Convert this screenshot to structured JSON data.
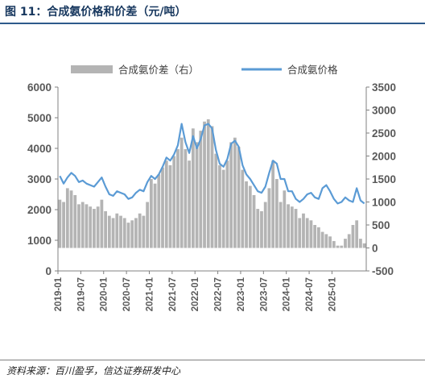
{
  "figure": {
    "title": "图 11：合成氨价格和价差（元/吨）",
    "source": "资料来源：百川盈孚，信达证券研发中心"
  },
  "chart_data": {
    "type": "bar+line",
    "legend": [
      {
        "name": "合成氨价差（右）",
        "kind": "bar",
        "color": "#b4b4b4"
      },
      {
        "name": "合成氨价格",
        "kind": "line",
        "color": "#5b9bd5"
      }
    ],
    "left_axis": {
      "min": 0,
      "max": 6000,
      "step": 1000,
      "ticks": [
        "0",
        "1000",
        "2000",
        "3000",
        "4000",
        "5000",
        "6000"
      ]
    },
    "right_axis": {
      "min": -500,
      "max": 3500,
      "step": 500,
      "ticks": [
        "-500",
        "0",
        "500",
        "1000",
        "1500",
        "2000",
        "2500",
        "3000",
        "3500"
      ]
    },
    "x_ticks": [
      "2019-01",
      "2019-07",
      "2020-01",
      "2020-07",
      "2021-01",
      "2021-07",
      "2022-01",
      "2022-07",
      "2023-01",
      "2023-07",
      "2024-01",
      "2024-07",
      "2025-01"
    ],
    "x_range": [
      "2019-01",
      "2025-09"
    ],
    "price_series": {
      "name": "合成氨价格",
      "x": [
        "2019-01",
        "2019-02",
        "2019-03",
        "2019-04",
        "2019-05",
        "2019-06",
        "2019-07",
        "2019-08",
        "2019-09",
        "2019-10",
        "2019-11",
        "2019-12",
        "2020-01",
        "2020-02",
        "2020-03",
        "2020-04",
        "2020-05",
        "2020-06",
        "2020-07",
        "2020-08",
        "2020-09",
        "2020-10",
        "2020-11",
        "2020-12",
        "2021-01",
        "2021-02",
        "2021-03",
        "2021-04",
        "2021-05",
        "2021-06",
        "2021-07",
        "2021-08",
        "2021-09",
        "2021-10",
        "2021-11",
        "2021-12",
        "2022-01",
        "2022-02",
        "2022-03",
        "2022-04",
        "2022-05",
        "2022-06",
        "2022-07",
        "2022-08",
        "2022-09",
        "2022-10",
        "2022-11",
        "2022-12",
        "2023-01",
        "2023-02",
        "2023-03",
        "2023-04",
        "2023-05",
        "2023-06",
        "2023-07",
        "2023-08",
        "2023-09",
        "2023-10",
        "2023-11",
        "2023-12",
        "2024-01",
        "2024-02",
        "2024-03",
        "2024-04",
        "2024-05",
        "2024-06",
        "2024-07",
        "2024-08",
        "2024-09",
        "2024-10",
        "2024-11",
        "2024-12",
        "2025-01",
        "2025-02",
        "2025-03",
        "2025-04",
        "2025-05",
        "2025-06",
        "2025-07",
        "2025-08",
        "2025-09"
      ],
      "y": [
        3100,
        2850,
        3050,
        3200,
        3100,
        2900,
        2950,
        2850,
        2800,
        2750,
        2900,
        3050,
        2750,
        2500,
        2450,
        2600,
        2550,
        2500,
        2350,
        2400,
        2550,
        2650,
        2600,
        2900,
        3100,
        3000,
        3150,
        3400,
        3700,
        3600,
        3800,
        4100,
        4800,
        4200,
        3850,
        4400,
        4000,
        4300,
        4750,
        4800,
        4650,
        3950,
        3500,
        3400,
        3650,
        4150,
        4250,
        4050,
        3450,
        3150,
        3000,
        2800,
        2600,
        2550,
        2750,
        3200,
        3600,
        3500,
        3000,
        3000,
        2600,
        2600,
        2350,
        2250,
        2350,
        2500,
        2550,
        2400,
        2350,
        2700,
        2800,
        2600,
        2350,
        2200,
        2250,
        2400,
        2300,
        2250,
        2700,
        2300,
        2200
      ]
    },
    "spread_series": {
      "name": "合成氨价差（右）",
      "x": [
        "2019-01",
        "2019-02",
        "2019-03",
        "2019-04",
        "2019-05",
        "2019-06",
        "2019-07",
        "2019-08",
        "2019-09",
        "2019-10",
        "2019-11",
        "2019-12",
        "2020-01",
        "2020-02",
        "2020-03",
        "2020-04",
        "2020-05",
        "2020-06",
        "2020-07",
        "2020-08",
        "2020-09",
        "2020-10",
        "2020-11",
        "2020-12",
        "2021-01",
        "2021-02",
        "2021-03",
        "2021-04",
        "2021-05",
        "2021-06",
        "2021-07",
        "2021-08",
        "2021-09",
        "2021-10",
        "2021-11",
        "2021-12",
        "2022-01",
        "2022-02",
        "2022-03",
        "2022-04",
        "2022-05",
        "2022-06",
        "2022-07",
        "2022-08",
        "2022-09",
        "2022-10",
        "2022-11",
        "2022-12",
        "2023-01",
        "2023-02",
        "2023-03",
        "2023-04",
        "2023-05",
        "2023-06",
        "2023-07",
        "2023-08",
        "2023-09",
        "2023-10",
        "2023-11",
        "2023-12",
        "2024-01",
        "2024-02",
        "2024-03",
        "2024-04",
        "2024-05",
        "2024-06",
        "2024-07",
        "2024-08",
        "2024-09",
        "2024-10",
        "2024-11",
        "2024-12",
        "2025-01",
        "2025-02",
        "2025-03",
        "2025-04",
        "2025-05",
        "2025-06",
        "2025-07",
        "2025-08",
        "2025-09"
      ],
      "y": [
        1050,
        1000,
        1300,
        1250,
        1150,
        950,
        1000,
        950,
        900,
        850,
        900,
        1050,
        800,
        700,
        650,
        750,
        700,
        650,
        550,
        600,
        650,
        750,
        700,
        1000,
        1500,
        1400,
        1600,
        1750,
        1900,
        1800,
        2000,
        2150,
        2400,
        2150,
        1900,
        2600,
        2300,
        2550,
        2750,
        2800,
        2650,
        2050,
        1800,
        1700,
        1900,
        2300,
        2400,
        2200,
        1700,
        1450,
        1350,
        1150,
        850,
        800,
        1000,
        1300,
        1900,
        1500,
        1000,
        1250,
        950,
        900,
        850,
        650,
        750,
        650,
        600,
        500,
        450,
        350,
        300,
        250,
        150,
        50,
        50,
        200,
        300,
        500,
        600,
        200,
        100
      ]
    }
  }
}
